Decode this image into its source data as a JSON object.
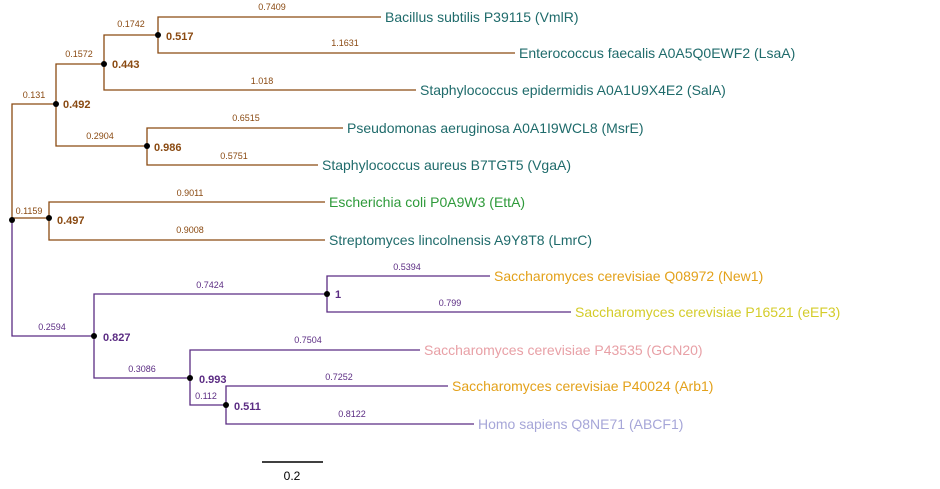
{
  "colors": {
    "bacterial_branch": "#8a4a12",
    "eukaryotic_branch": "#5b2c83",
    "teal": "#1f6b6b",
    "green": "#2e9a3a",
    "orange": "#e3a11a",
    "yellow": "#d4cc2a",
    "pink": "#e8a0a6",
    "lavender": "#a6a6d8",
    "node": "#000000"
  },
  "leaves": [
    {
      "id": "bacillus",
      "label": "Bacillus subtilis P39115 (VmlR)",
      "color": "teal"
    },
    {
      "id": "enterococcus",
      "label": "Enterococcus faecalis A0A5Q0EWF2 (LsaA)",
      "color": "teal"
    },
    {
      "id": "staph-epi",
      "label": "Staphylococcus epidermidis A0A1U9X4E2 (SalA)",
      "color": "teal"
    },
    {
      "id": "pseudomonas",
      "label": "Pseudomonas aeruginosa A0A1I9WCL8 (MsrE)",
      "color": "teal"
    },
    {
      "id": "staph-aureus",
      "label": "Staphylococcus aureus B7TGT5 (VgaA)",
      "color": "teal"
    },
    {
      "id": "ecoli",
      "label": "Escherichia coli P0A9W3 (EttA)",
      "color": "green"
    },
    {
      "id": "streptomyces",
      "label": "Streptomyces lincolnensis A9Y8T8 (LmrC)",
      "color": "teal"
    },
    {
      "id": "sc-new1",
      "label": "Saccharomyces cerevisiae Q08972 (New1)",
      "color": "orange"
    },
    {
      "id": "sc-eef3",
      "label": "Saccharomyces cerevisiae P16521 (eEF3)",
      "color": "yellow"
    },
    {
      "id": "sc-gcn20",
      "label": "Saccharomyces cerevisiae P43535 (GCN20)",
      "color": "pink"
    },
    {
      "id": "sc-arb1",
      "label": "Saccharomyces cerevisiae P40024 (Arb1)",
      "color": "orange"
    },
    {
      "id": "homo-abcf1",
      "label": "Homo sapiens Q8NE71 (ABCF1)",
      "color": "lavender"
    }
  ],
  "branch_lengths": {
    "bacillus": "0.7409",
    "enterococcus": "1.1631",
    "n_bac_ent": "0.1742",
    "staph-epi": "1.018",
    "n_firm": "0.1572",
    "pseudomonas": "0.6515",
    "staph-aureus": "0.5751",
    "n_pse_sta": "0.2904",
    "n_cladeA": "0.131",
    "ecoli": "0.9011",
    "streptomyces": "0.9008",
    "n_bacteria": "0.1159",
    "sc-new1": "0.5394",
    "sc-eef3": "0.799",
    "n_new1_eef3": "0.7424",
    "sc-gcn20": "0.7504",
    "sc-arb1": "0.7252",
    "homo-abcf1": "0.8122",
    "n_arb_abcf": "0.112",
    "n_gcn_group": "0.3086",
    "n_eukaryota": "0.2594"
  },
  "supports": {
    "n_bac_ent": "0.517",
    "n_firm": "0.443",
    "n_cladeA": "0.492",
    "n_pse_sta": "0.986",
    "n_bacteria": "0.497",
    "n_new1_eef3": "1",
    "n_eukaryota": "0.827",
    "n_gcn_group": "0.993",
    "n_arb_abcf": "0.511"
  },
  "scale_bar": {
    "label": "0.2",
    "value": 0.2
  }
}
